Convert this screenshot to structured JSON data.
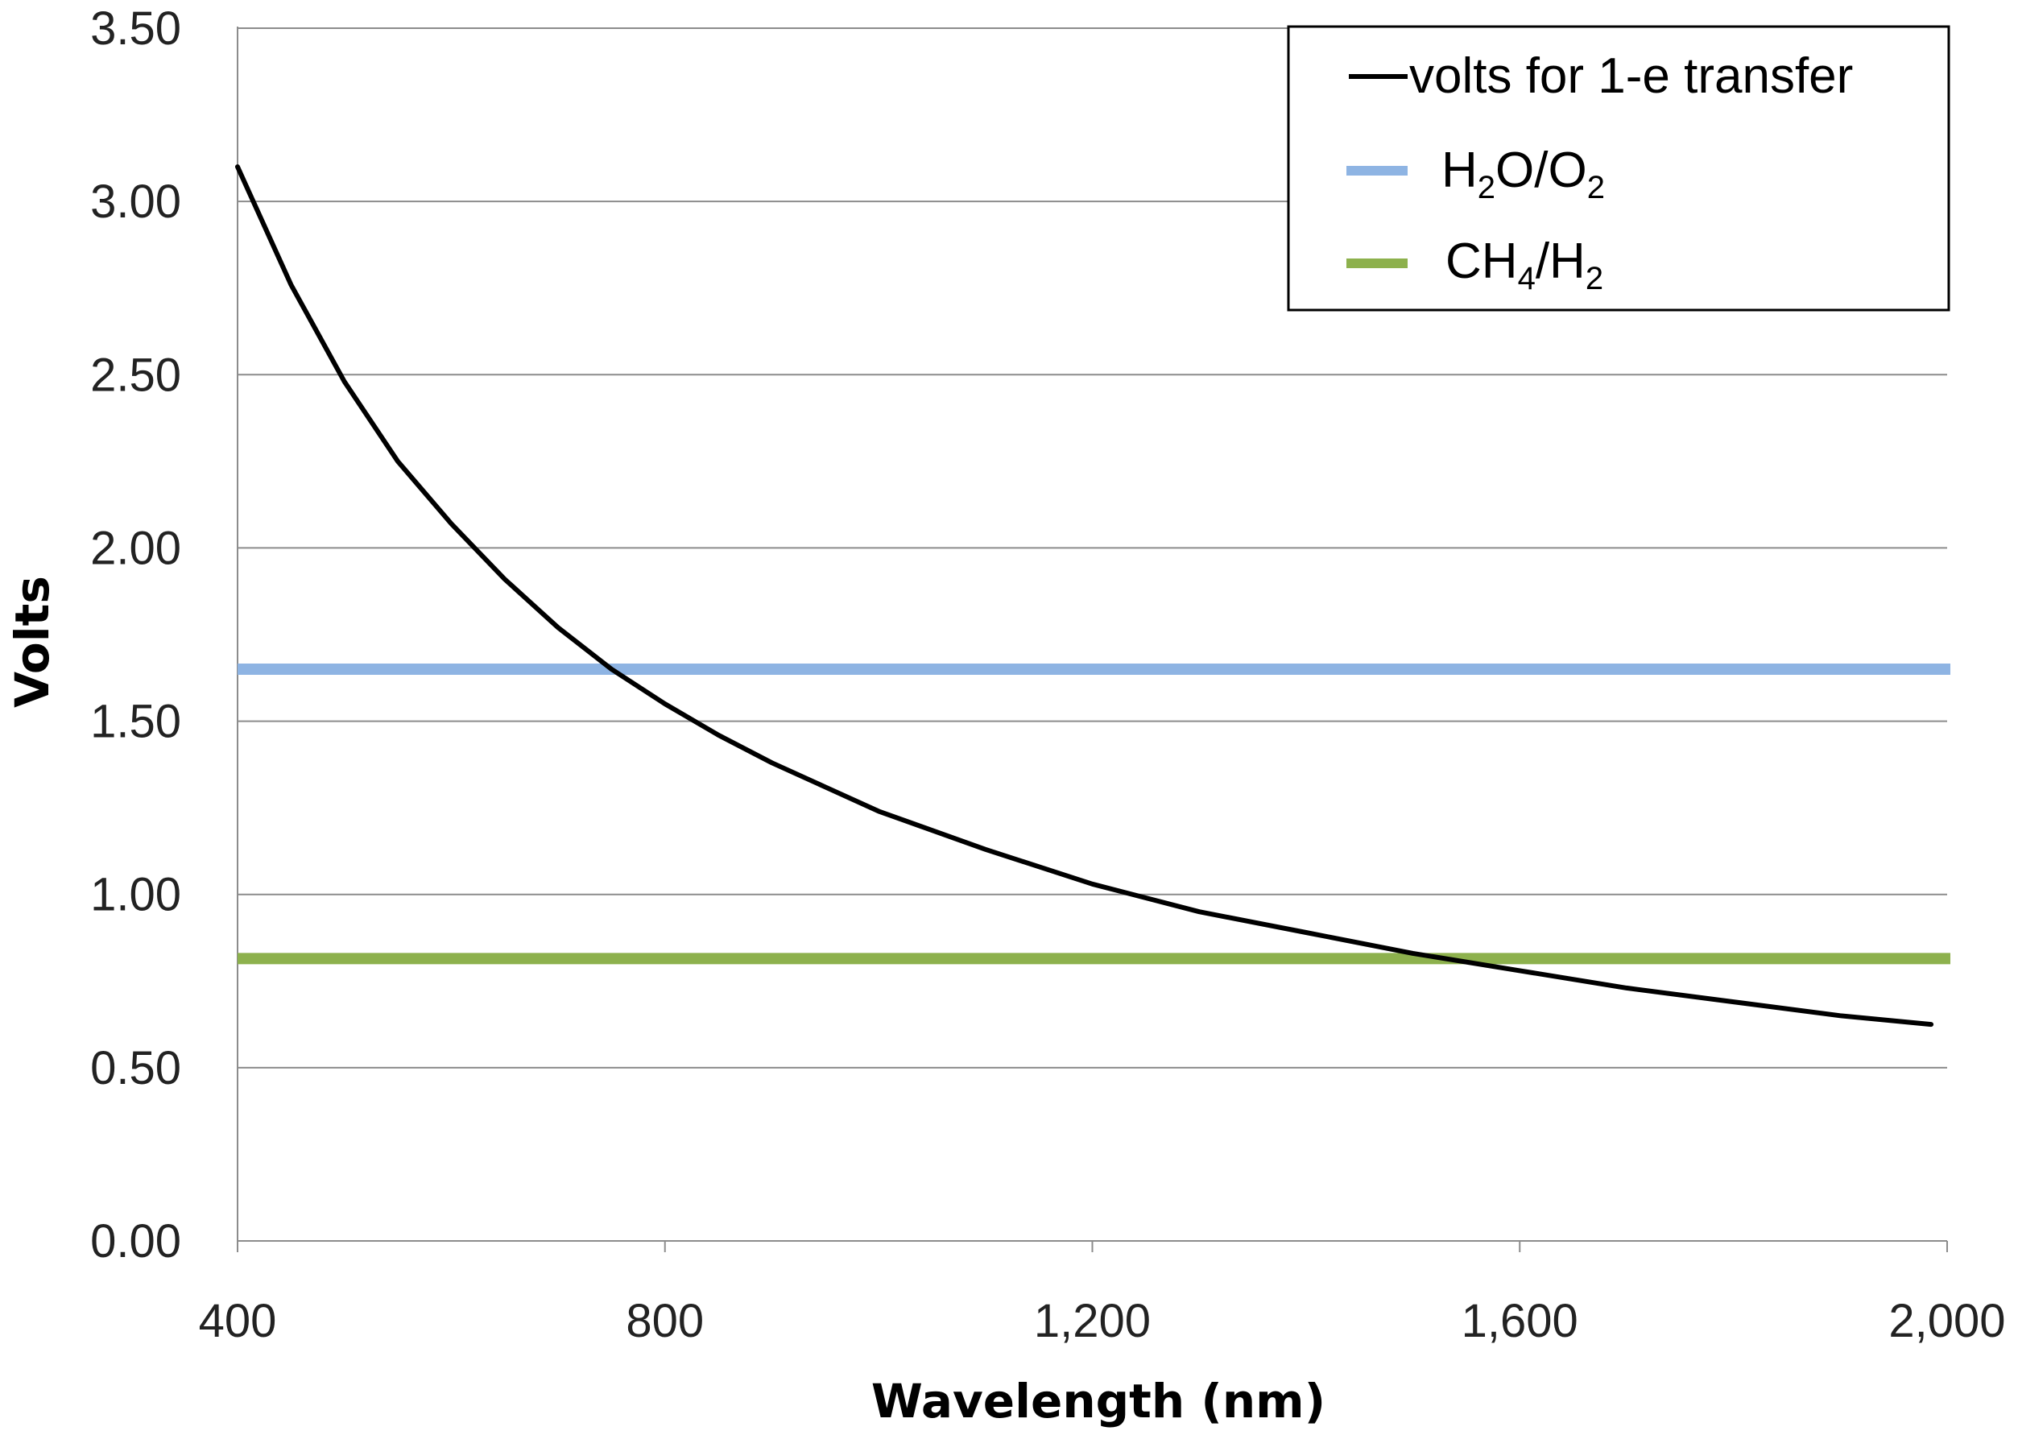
{
  "chart_data": {
    "type": "line",
    "title": "",
    "xlabel": "Wavelength (nm)",
    "ylabel": "Volts",
    "xlim": [
      400,
      2000
    ],
    "ylim": [
      0,
      3.5
    ],
    "x_ticks": [
      400,
      800,
      1200,
      1600,
      2000
    ],
    "x_tick_labels": [
      "400",
      "800",
      "1,200",
      "1,600",
      "2,000"
    ],
    "y_ticks": [
      0,
      0.5,
      1.0,
      1.5,
      2.0,
      2.5,
      3.0,
      3.5
    ],
    "y_tick_labels": [
      "0.00",
      "0.50",
      "1.00",
      "1.50",
      "2.00",
      "2.50",
      "3.00",
      "3.50"
    ],
    "grid": "horizontal",
    "legend_position": "top-right",
    "series": [
      {
        "name": "volts for 1-e transfer",
        "color": "#000000",
        "x": [
          400,
          450,
          500,
          550,
          600,
          650,
          700,
          750,
          800,
          850,
          900,
          950,
          1000,
          1100,
          1200,
          1300,
          1400,
          1500,
          1600,
          1700,
          1800,
          1900,
          1985
        ],
        "y": [
          3.1,
          2.76,
          2.48,
          2.25,
          2.07,
          1.91,
          1.77,
          1.65,
          1.55,
          1.46,
          1.38,
          1.31,
          1.24,
          1.13,
          1.03,
          0.95,
          0.89,
          0.83,
          0.78,
          0.73,
          0.69,
          0.65,
          0.625
        ]
      },
      {
        "name_parts": [
          "H",
          "2",
          "O/O",
          "2",
          ""
        ],
        "color": "#8eb4e3",
        "x": [
          400,
          2000
        ],
        "y": [
          1.65,
          1.65
        ]
      },
      {
        "name_parts": [
          "CH",
          "4",
          "/H",
          "2",
          ""
        ],
        "color": "#8db14d",
        "x": [
          400,
          2000
        ],
        "y": [
          0.815,
          0.815
        ]
      }
    ]
  }
}
